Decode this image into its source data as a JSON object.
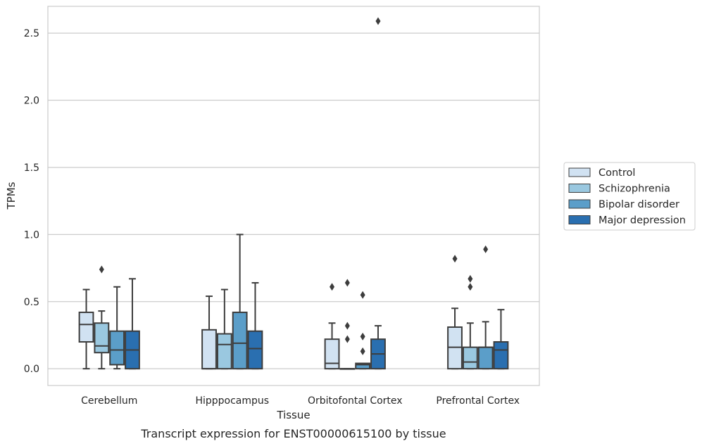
{
  "chart_data": {
    "type": "box",
    "xlabel": "Tissue",
    "ylabel": "TPMs",
    "caption": "Transcript expression for ENST00000615100 by tissue",
    "ylim": [
      -0.125,
      2.7
    ],
    "y_ticks": [
      "0.0",
      "0.5",
      "1.0",
      "1.5",
      "2.0",
      "2.5"
    ],
    "y_tick_values": [
      0,
      0.5,
      1.0,
      1.5,
      2.0,
      2.5
    ],
    "grid": "horizontal",
    "legend_position": "right",
    "categories": [
      "Cerebellum",
      "Hipppocampus",
      "Orbitofontal Cortex",
      "Prefrontal Cortex"
    ],
    "series": [
      {
        "name": "Control",
        "color": "#d1e2f2",
        "boxes": [
          {
            "q1": 0.2,
            "median": 0.33,
            "q3": 0.42,
            "whisker_low": 0.0,
            "whisker_high": 0.59,
            "outliers": []
          },
          {
            "q1": 0.0,
            "median": 0.0,
            "q3": 0.29,
            "whisker_low": 0.0,
            "whisker_high": 0.54,
            "outliers": []
          },
          {
            "q1": 0.0,
            "median": 0.04,
            "q3": 0.22,
            "whisker_low": 0.0,
            "whisker_high": 0.34,
            "outliers": [
              0.61
            ]
          },
          {
            "q1": 0.0,
            "median": 0.16,
            "q3": 0.31,
            "whisker_low": 0.0,
            "whisker_high": 0.45,
            "outliers": [
              0.82
            ]
          }
        ]
      },
      {
        "name": "Schizophrenia",
        "color": "#9ac8e0",
        "boxes": [
          {
            "q1": 0.12,
            "median": 0.17,
            "q3": 0.34,
            "whisker_low": 0.0,
            "whisker_high": 0.43,
            "outliers": [
              0.74
            ]
          },
          {
            "q1": 0.0,
            "median": 0.18,
            "q3": 0.26,
            "whisker_low": 0.0,
            "whisker_high": 0.59,
            "outliers": []
          },
          {
            "q1": 0.0,
            "median": 0.0,
            "q3": 0.0,
            "whisker_low": 0.0,
            "whisker_high": 0.0,
            "outliers": [
              0.64,
              0.32,
              0.22
            ]
          },
          {
            "q1": 0.0,
            "median": 0.05,
            "q3": 0.16,
            "whisker_low": 0.0,
            "whisker_high": 0.34,
            "outliers": [
              0.67,
              0.61
            ]
          }
        ]
      },
      {
        "name": "Bipolar disorder",
        "color": "#5b9ec9",
        "boxes": [
          {
            "q1": 0.03,
            "median": 0.14,
            "q3": 0.28,
            "whisker_low": 0.0,
            "whisker_high": 0.61,
            "outliers": []
          },
          {
            "q1": 0.0,
            "median": 0.19,
            "q3": 0.42,
            "whisker_low": 0.0,
            "whisker_high": 1.0,
            "outliers": []
          },
          {
            "q1": 0.0,
            "median": 0.03,
            "q3": 0.04,
            "whisker_low": 0.0,
            "whisker_high": 0.04,
            "outliers": [
              0.55,
              0.24,
              0.13
            ]
          },
          {
            "q1": 0.0,
            "median": 0.16,
            "q3": 0.16,
            "whisker_low": 0.0,
            "whisker_high": 0.35,
            "outliers": [
              0.89
            ]
          }
        ]
      },
      {
        "name": "Major depression",
        "color": "#2a6fb0",
        "boxes": [
          {
            "q1": 0.0,
            "median": 0.14,
            "q3": 0.28,
            "whisker_low": 0.0,
            "whisker_high": 0.67,
            "outliers": []
          },
          {
            "q1": 0.0,
            "median": 0.15,
            "q3": 0.28,
            "whisker_low": 0.0,
            "whisker_high": 0.64,
            "outliers": []
          },
          {
            "q1": 0.0,
            "median": 0.11,
            "q3": 0.22,
            "whisker_low": 0.0,
            "whisker_high": 0.32,
            "outliers": [
              2.59
            ]
          },
          {
            "q1": 0.0,
            "median": 0.14,
            "q3": 0.2,
            "whisker_low": 0.0,
            "whisker_high": 0.44,
            "outliers": []
          }
        ]
      }
    ]
  }
}
